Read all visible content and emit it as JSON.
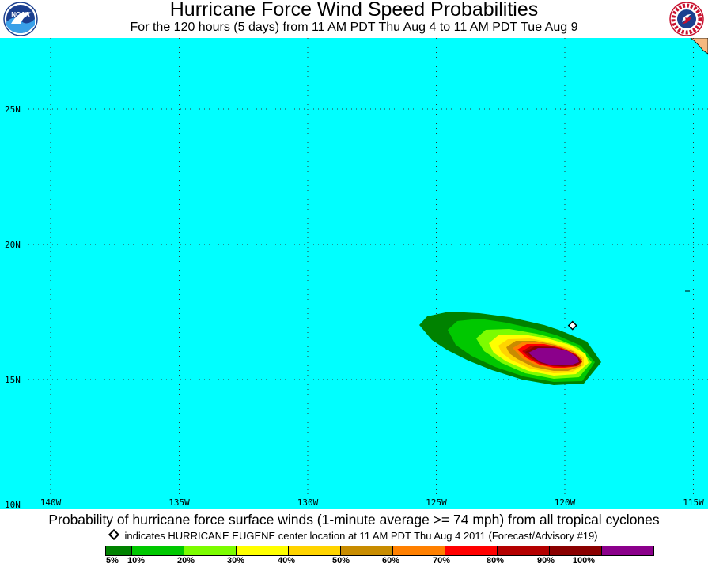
{
  "header": {
    "title": "Hurricane Force Wind Speed Probabilities",
    "subtitle": "For the 120 hours (5 days) from 11 AM PDT Thu Aug 4 to 11 AM PDT Tue Aug 9",
    "left_logo": {
      "icon": "noaa-logo-icon",
      "text": "NOAA"
    },
    "right_logo": {
      "icon": "national-weather-service-logo-icon"
    }
  },
  "map": {
    "ocean_color": "#00ffff",
    "land_color": "#f5b87f",
    "lat_labels": [
      {
        "label": "25N",
        "lat": 25
      },
      {
        "label": "20N",
        "lat": 20
      },
      {
        "label": "15N",
        "lat": 15
      },
      {
        "label": "10N",
        "lat": 10
      }
    ],
    "lon_labels": [
      {
        "label": "140W",
        "lon": -140
      },
      {
        "label": "135W",
        "lon": -135
      },
      {
        "label": "130W",
        "lon": -130
      },
      {
        "label": "125W",
        "lon": -125
      },
      {
        "label": "120W",
        "lon": -120
      },
      {
        "label": "115W",
        "lon": -115
      }
    ],
    "storm_center": {
      "name": "HURRICANE EUGENE",
      "lat": 17.0,
      "lon": -119.7
    }
  },
  "footer": {
    "caption": "Probability of hurricane force surface winds (1-minute average >= 74 mph) from all tropical cyclones",
    "center_note": "indicates HURRICANE EUGENE center location at 11 AM PDT Thu Aug 4 2011 (Forecast/Advisory #19)"
  },
  "legend": {
    "colors": [
      "#008200",
      "#00c800",
      "#7cfc00",
      "#ffff00",
      "#ffd400",
      "#c88c00",
      "#ff8000",
      "#ff0000",
      "#b40000",
      "#8a0000",
      "#8b008b"
    ],
    "labels": [
      "5%",
      "10%",
      "20%",
      "30%",
      "40%",
      "50%",
      "60%",
      "70%",
      "80%",
      "90%",
      "100%"
    ]
  }
}
